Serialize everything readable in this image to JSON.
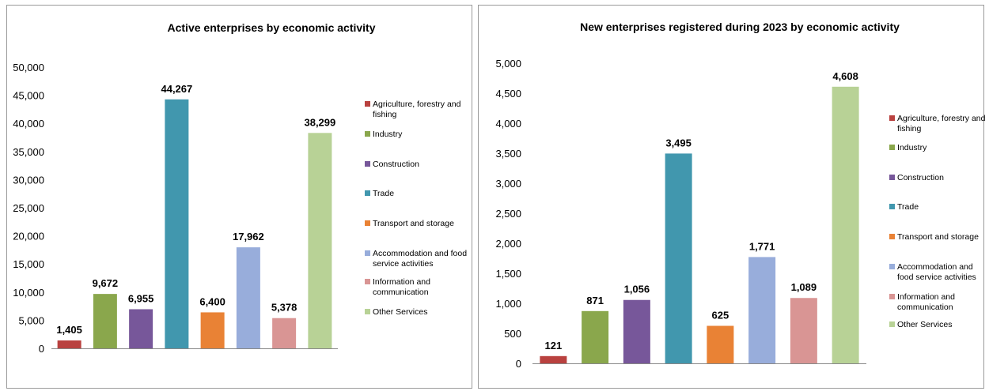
{
  "colors": [
    "#b9413f",
    "#8aa74c",
    "#77579a",
    "#4197ae",
    "#e98235",
    "#98addb",
    "#d99594",
    "#b8d296"
  ],
  "chart_data": [
    {
      "type": "bar",
      "title": "Active enterprises  by economic activity",
      "categories": [
        "Agriculture, forestry and fishing",
        "Industry",
        "Construction",
        "Trade",
        "Transport and storage",
        "Accommodation and food service activities",
        "Information and communication",
        "Other Services"
      ],
      "values": [
        1405,
        9672,
        6955,
        44267,
        6400,
        17962,
        5378,
        38299
      ],
      "value_labels": [
        "1,405",
        "9,672",
        "6,955",
        "44,267",
        "6,400",
        "17,962",
        "5,378",
        "38,299"
      ],
      "legend": [
        [
          "Agriculture, forestry and",
          "fishing"
        ],
        [
          "Industry"
        ],
        [
          "Construction"
        ],
        [
          "Trade"
        ],
        [
          "Transport and storage"
        ],
        [
          "Accommodation and food",
          "service activities"
        ],
        [
          "Information and",
          "communication"
        ],
        [
          "Other Services"
        ]
      ],
      "legend_position": "right",
      "ylim": [
        0,
        50000
      ],
      "yticks": [
        "0",
        "5,000",
        "10,000",
        "15,000",
        "20,000",
        "25,000",
        "30,000",
        "35,000",
        "40,000",
        "45,000",
        "50,000"
      ],
      "grid": false
    },
    {
      "type": "bar",
      "title": "New enterprises registered during 2023  by economic activity",
      "categories": [
        "Agriculture, forestry and fishing",
        "Industry",
        "Construction",
        "Trade",
        "Transport and storage",
        "Accommodation and food service activities",
        "Information and communication",
        "Other Services"
      ],
      "values": [
        121,
        871,
        1056,
        3495,
        625,
        1771,
        1089,
        4608
      ],
      "value_labels": [
        "121",
        "871",
        "1,056",
        "3,495",
        "625",
        "1,771",
        "1,089",
        "4,608"
      ],
      "legend": [
        [
          "Agriculture, forestry and",
          "fishing"
        ],
        [
          "Industry"
        ],
        [
          "Construction"
        ],
        [
          "Trade"
        ],
        [
          "Transport and storage"
        ],
        [
          "Accommodation and",
          "food service activities"
        ],
        [
          "Information and",
          "communication"
        ],
        [
          "Other Services"
        ]
      ],
      "legend_position": "right",
      "ylim": [
        0,
        5000
      ],
      "yticks": [
        "0",
        "500",
        "1,000",
        "1,500",
        "2,000",
        "2,500",
        "3,000",
        "3,500",
        "4,000",
        "4,500",
        "5,000"
      ],
      "grid": false
    }
  ]
}
